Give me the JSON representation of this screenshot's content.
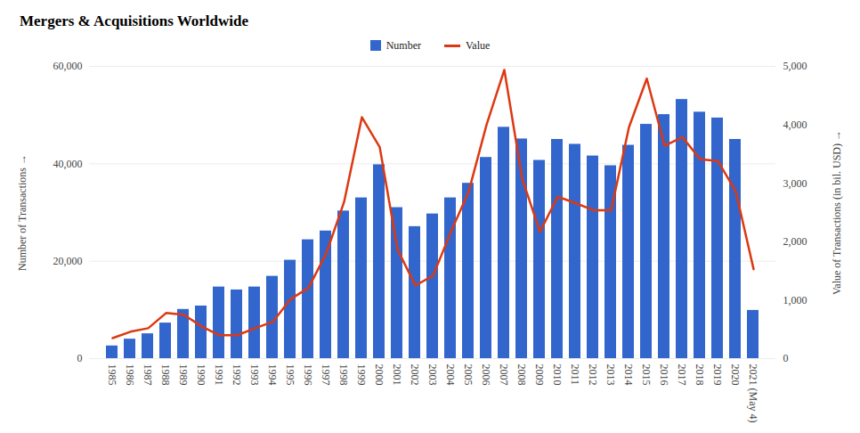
{
  "chart_data": {
    "type": "bar",
    "title": "Mergers & Acquisitions Worldwide",
    "categories": [
      "1985",
      "1986",
      "1987",
      "1988",
      "1989",
      "1990",
      "1991",
      "1992",
      "1993",
      "1994",
      "1995",
      "1996",
      "1997",
      "1998",
      "1999",
      "2000",
      "2001",
      "2002",
      "2003",
      "2004",
      "2005",
      "2006",
      "2007",
      "2008",
      "2009",
      "2010",
      "2011",
      "2012",
      "2013",
      "2014",
      "2015",
      "2016",
      "2017",
      "2018",
      "2019",
      "2020",
      "2021 (May 4)"
    ],
    "series": [
      {
        "name": "Number",
        "type": "bar",
        "color": "#3366cc",
        "values": [
          2600,
          4000,
          5100,
          7300,
          10100,
          10800,
          14700,
          14100,
          14700,
          16900,
          20200,
          24400,
          26200,
          30300,
          33000,
          39800,
          31000,
          27100,
          29700,
          33000,
          36000,
          41300,
          47500,
          45100,
          40700,
          45000,
          44000,
          41600,
          39600,
          43800,
          48100,
          50100,
          53200,
          50600,
          49400,
          45000,
          9900
        ]
      },
      {
        "name": "Value",
        "type": "line",
        "color": "#dc3912",
        "axis": "y2",
        "values": [
          350,
          460,
          520,
          780,
          750,
          550,
          400,
          400,
          520,
          630,
          1020,
          1210,
          1800,
          2680,
          4130,
          3620,
          1870,
          1250,
          1420,
          2170,
          2860,
          4000,
          4940,
          3080,
          2170,
          2770,
          2660,
          2540,
          2540,
          3960,
          4790,
          3640,
          3790,
          3410,
          3380,
          2860,
          1530
        ]
      }
    ],
    "ylabel": "Number of Transactions",
    "y2label": "Value of Transactions (in bil. USD)",
    "ylim": [
      0,
      60000
    ],
    "yticks": [
      0,
      {
        "value": 20000,
        "label": "20,000"
      },
      {
        "value": 40000,
        "label": "40,000"
      },
      {
        "value": 60000,
        "label": "60,000"
      }
    ],
    "y2lim": [
      0,
      5000
    ],
    "y2ticks": [
      0,
      {
        "value": 1000,
        "label": "1,000"
      },
      {
        "value": 2000,
        "label": "2,000"
      },
      {
        "value": 3000,
        "label": "3,000"
      },
      {
        "value": 4000,
        "label": "4,000"
      },
      {
        "value": 5000,
        "label": "5,000"
      }
    ],
    "grid": true,
    "legend": "top"
  }
}
